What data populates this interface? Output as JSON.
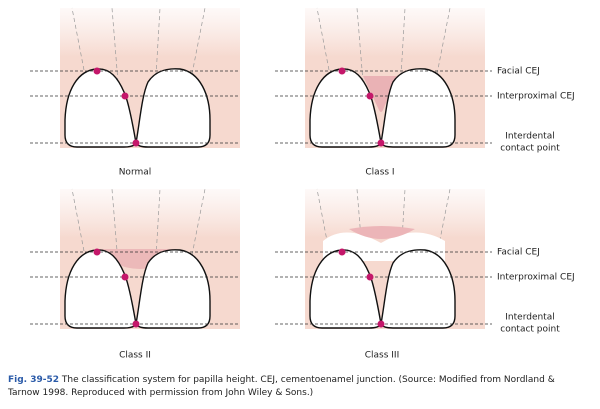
{
  "panels": [
    {
      "label": "Normal"
    },
    {
      "label": "Class I"
    },
    {
      "label": "Class II"
    },
    {
      "label": "Class III"
    }
  ],
  "label_groups": [
    {
      "facial_cej": "Facial CEJ",
      "interproximal_cej": "Interproximal CEJ",
      "contact_point": [
        "Interdental",
        "contact point"
      ]
    },
    {
      "facial_cej": "Facial CEJ",
      "interproximal_cej": "Interproximal CEJ",
      "contact_point": [
        "Interdental",
        "contact point"
      ]
    }
  ],
  "caption": {
    "number": "Fig. 39-52",
    "text": "The classification system for papilla height. CEJ, cementoenamel junction. (Source: Modified from Nordland & Tarnow 1998. Reproduced with permission from John Wiley & Sons.)"
  }
}
